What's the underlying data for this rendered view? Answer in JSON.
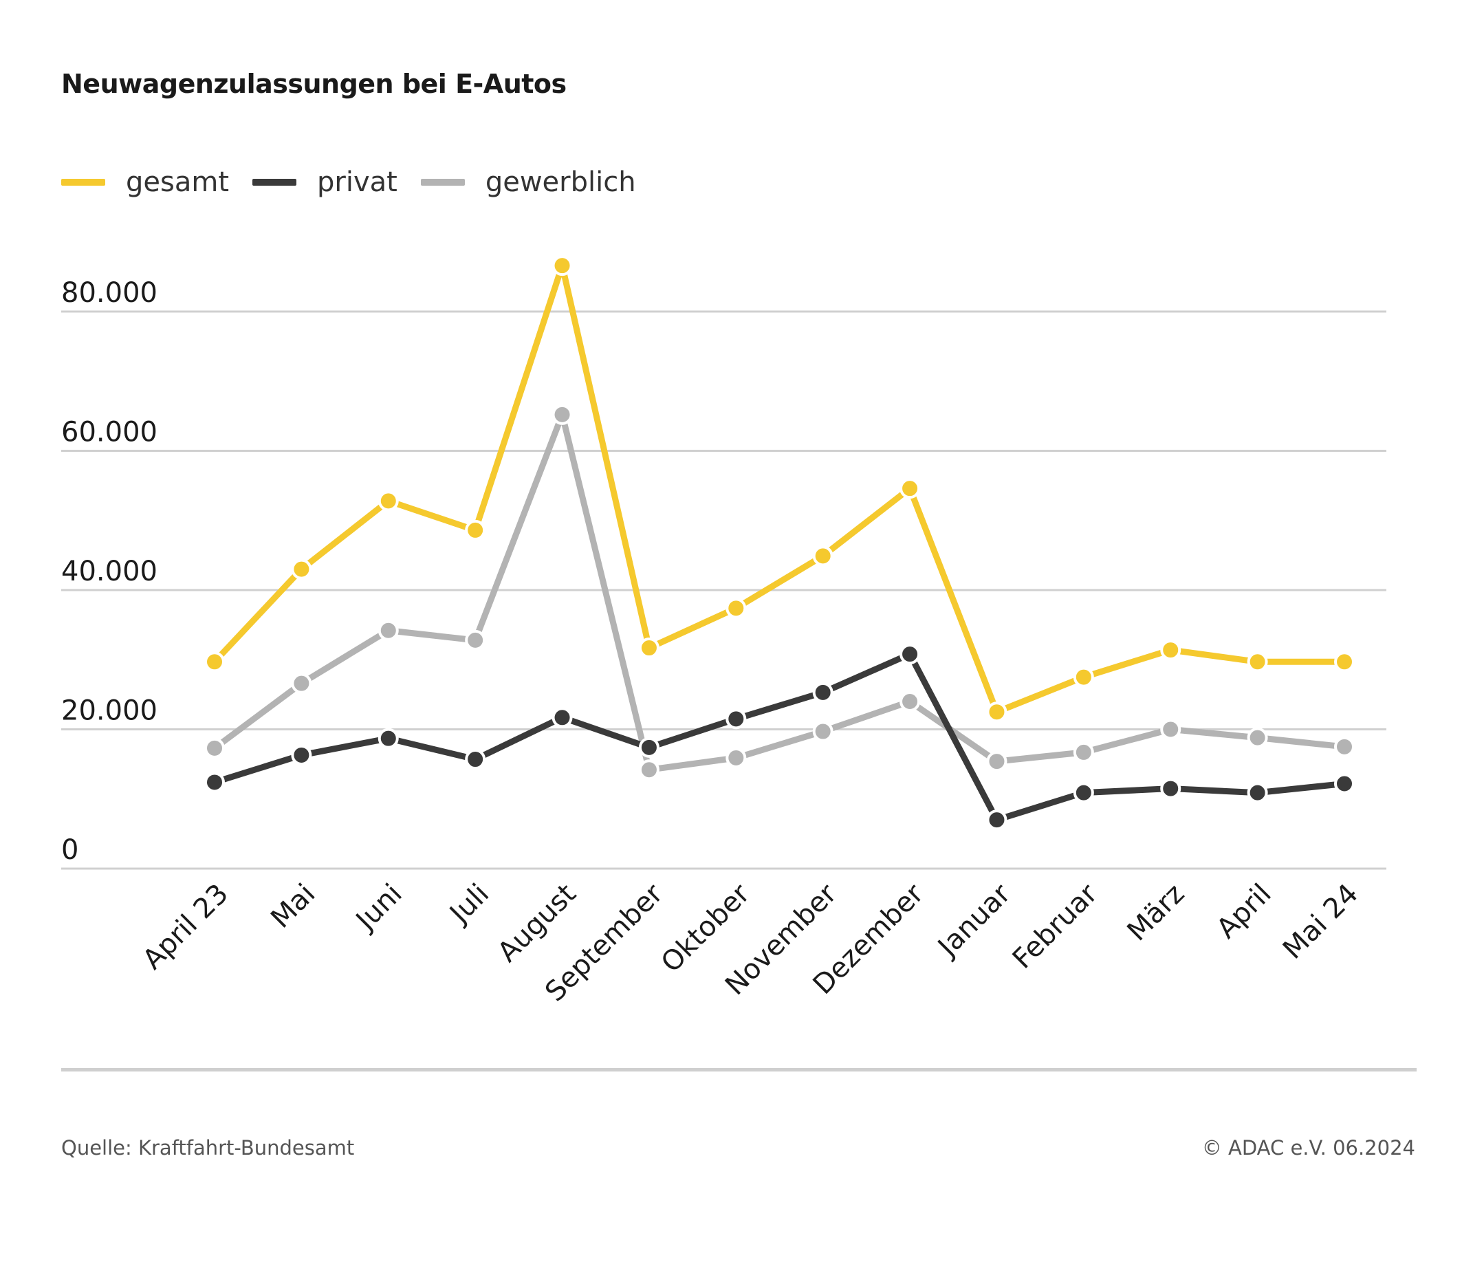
{
  "title": "Neuwagenzulassungen bei E-Autos",
  "source": "Quelle: Kraftfahrt-Bundesamt",
  "copyright": "© ADAC e.V. 06.2024",
  "colors": {
    "gesamt": "#f5c92e",
    "privat": "#3a3a3a",
    "gewerblich": "#b3b3b3",
    "grid": "#d0d0d0"
  },
  "legend": [
    {
      "label": "gesamt",
      "color": "#f5c92e"
    },
    {
      "label": "privat",
      "color": "#3a3a3a"
    },
    {
      "label": "gewerblich",
      "color": "#b3b3b3"
    }
  ],
  "chart_data": {
    "type": "line",
    "title": "Neuwagenzulassungen bei E-Autos",
    "xlabel": "",
    "ylabel": "",
    "categories": [
      "April 23",
      "Mai",
      "Juni",
      "Juli",
      "August",
      "September",
      "Oktober",
      "November",
      "Dezember",
      "Januar",
      "Februar",
      "März",
      "April",
      "Mai 24"
    ],
    "series": [
      {
        "name": "gesamt",
        "color": "#f5c92e",
        "values": [
          29700,
          43000,
          52800,
          48600,
          86600,
          31700,
          37400,
          44900,
          54600,
          22500,
          27500,
          31400,
          29700,
          29700
        ]
      },
      {
        "name": "privat",
        "color": "#3a3a3a",
        "values": [
          12400,
          16300,
          18700,
          15700,
          21700,
          17400,
          21500,
          25300,
          30800,
          7000,
          10900,
          11500,
          10900,
          12200
        ]
      },
      {
        "name": "gewerblich",
        "color": "#b3b3b3",
        "values": [
          17300,
          26600,
          34200,
          32800,
          65200,
          14200,
          15900,
          19700,
          24000,
          15400,
          16700,
          20000,
          18800,
          17500
        ]
      }
    ],
    "ylim": [
      0,
      80000
    ],
    "yticks": [
      0,
      20000,
      40000,
      60000,
      80000
    ],
    "ytick_labels": [
      "0",
      "20.000",
      "40.000",
      "60.000",
      "80.000"
    ],
    "grid": true,
    "legend_position": "top-left"
  }
}
